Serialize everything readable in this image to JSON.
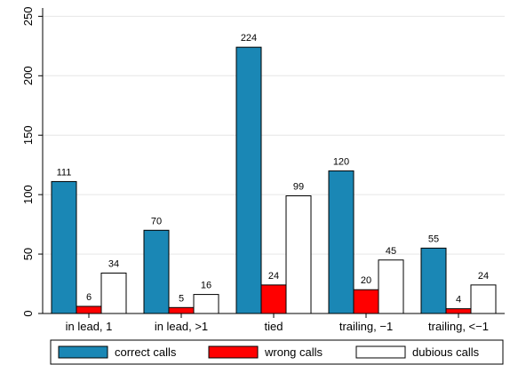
{
  "chart_data": {
    "type": "bar",
    "categories": [
      "in lead, 1",
      "in lead, >1",
      "tied",
      "trailing, −1",
      "trailing, <−1"
    ],
    "series": [
      {
        "name": "correct calls",
        "values": [
          111,
          70,
          224,
          120,
          55
        ],
        "color": "#1a87b5"
      },
      {
        "name": "wrong calls",
        "values": [
          6,
          5,
          24,
          20,
          4
        ],
        "color": "#ff0000"
      },
      {
        "name": "dubious calls",
        "values": [
          34,
          16,
          99,
          45,
          24
        ],
        "color": "#ffffff"
      }
    ],
    "y_ticks": [
      "0",
      "50",
      "100",
      "150",
      "200",
      "250"
    ],
    "ylim": [
      0,
      257
    ],
    "grid": true,
    "legend_position": "bottom"
  }
}
